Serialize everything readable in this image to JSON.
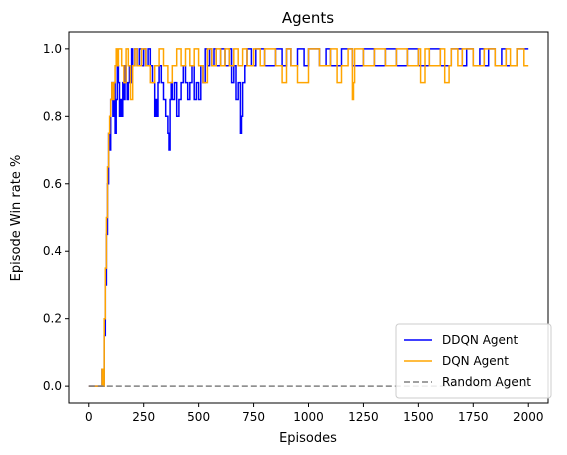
{
  "chart_data": {
    "type": "line",
    "title": "Agents",
    "xlabel": "Episodes",
    "ylabel": "Episode Win rate %",
    "xlim": [
      -90,
      2090
    ],
    "ylim": [
      -0.05,
      1.05
    ],
    "xticks": [
      0,
      250,
      500,
      750,
      1000,
      1250,
      1500,
      1750,
      2000
    ],
    "yticks": [
      0.0,
      0.2,
      0.4,
      0.6,
      0.8,
      1.0
    ],
    "xtick_labels": [
      "0",
      "250",
      "500",
      "750",
      "1000",
      "1250",
      "1500",
      "1750",
      "2000"
    ],
    "ytick_labels": [
      "0.0",
      "0.2",
      "0.4",
      "0.6",
      "0.8",
      "1.0"
    ],
    "grid": false,
    "legend_position": "lower-right",
    "series": [
      {
        "name": "DDQN Agent",
        "color": "#0000ff",
        "dash": "solid",
        "x": [
          0,
          50,
          60,
          65,
          70,
          75,
          80,
          85,
          90,
          95,
          100,
          105,
          110,
          115,
          120,
          125,
          130,
          135,
          140,
          145,
          150,
          155,
          160,
          165,
          170,
          175,
          180,
          185,
          190,
          195,
          200,
          210,
          220,
          230,
          240,
          250,
          260,
          270,
          280,
          290,
          300,
          305,
          310,
          315,
          320,
          330,
          340,
          350,
          360,
          365,
          370,
          375,
          380,
          390,
          400,
          410,
          420,
          430,
          440,
          450,
          460,
          470,
          480,
          490,
          500,
          510,
          520,
          530,
          540,
          550,
          560,
          570,
          580,
          600,
          620,
          640,
          650,
          660,
          670,
          680,
          690,
          695,
          700,
          710,
          720,
          740,
          760,
          800,
          850,
          880,
          900,
          920,
          950,
          980,
          1000,
          1050,
          1080,
          1100,
          1150,
          1200,
          1250,
          1300,
          1350,
          1400,
          1450,
          1500,
          1550,
          1600,
          1650,
          1700,
          1720,
          1750,
          1780,
          1800,
          1820,
          1850,
          1880,
          1900,
          1950,
          2000
        ],
        "y": [
          0.0,
          0.0,
          0.05,
          0.0,
          0.15,
          0.3,
          0.45,
          0.6,
          0.75,
          0.7,
          0.85,
          0.9,
          0.8,
          0.9,
          0.75,
          0.85,
          0.95,
          0.9,
          0.8,
          0.85,
          0.8,
          0.9,
          0.85,
          0.95,
          0.9,
          0.85,
          0.9,
          0.95,
          0.9,
          1.0,
          0.95,
          1.0,
          0.95,
          1.0,
          0.95,
          1.0,
          0.95,
          1.0,
          0.95,
          0.9,
          0.8,
          0.85,
          0.8,
          0.9,
          0.95,
          0.9,
          0.85,
          0.8,
          0.75,
          0.7,
          0.85,
          0.9,
          0.85,
          0.9,
          0.8,
          0.85,
          0.9,
          0.95,
          0.9,
          0.85,
          0.9,
          0.95,
          0.85,
          0.9,
          0.85,
          0.95,
          0.9,
          1.0,
          0.95,
          1.0,
          0.95,
          1.0,
          0.95,
          1.0,
          0.95,
          1.0,
          0.9,
          0.95,
          0.85,
          0.9,
          0.75,
          0.8,
          0.9,
          0.95,
          1.0,
          0.95,
          1.0,
          0.95,
          1.0,
          0.95,
          1.0,
          0.95,
          1.0,
          0.95,
          1.0,
          0.95,
          1.0,
          0.95,
          1.0,
          0.95,
          1.0,
          0.95,
          1.0,
          0.95,
          1.0,
          0.95,
          1.0,
          0.95,
          1.0,
          0.95,
          1.0,
          0.95,
          1.0,
          0.95,
          1.0,
          0.95,
          1.0,
          0.95,
          1.0,
          1.0
        ]
      },
      {
        "name": "DQN Agent",
        "color": "#ffa500",
        "dash": "solid",
        "x": [
          0,
          50,
          60,
          65,
          70,
          75,
          80,
          85,
          90,
          95,
          100,
          105,
          110,
          115,
          120,
          125,
          130,
          135,
          140,
          150,
          160,
          170,
          180,
          190,
          200,
          210,
          220,
          240,
          260,
          280,
          300,
          320,
          340,
          360,
          380,
          400,
          420,
          440,
          460,
          480,
          500,
          520,
          540,
          560,
          580,
          600,
          620,
          640,
          660,
          680,
          700,
          720,
          750,
          780,
          800,
          850,
          880,
          900,
          920,
          950,
          1000,
          1050,
          1100,
          1130,
          1150,
          1180,
          1200,
          1205,
          1210,
          1250,
          1300,
          1350,
          1400,
          1450,
          1500,
          1510,
          1530,
          1550,
          1600,
          1620,
          1640,
          1650,
          1680,
          1700,
          1750,
          1800,
          1850,
          1900,
          1920,
          1950,
          1980,
          2000
        ],
        "y": [
          0.0,
          0.0,
          0.05,
          0.0,
          0.2,
          0.35,
          0.5,
          0.65,
          0.75,
          0.8,
          0.85,
          0.9,
          0.85,
          0.9,
          0.95,
          1.0,
          0.95,
          1.0,
          1.0,
          0.95,
          0.9,
          1.0,
          0.95,
          0.85,
          0.95,
          1.0,
          0.95,
          1.0,
          0.95,
          0.9,
          0.95,
          1.0,
          0.95,
          0.9,
          0.95,
          1.0,
          0.95,
          1.0,
          0.95,
          1.0,
          0.95,
          0.9,
          1.0,
          0.95,
          1.0,
          0.95,
          1.0,
          0.95,
          1.0,
          0.95,
          1.0,
          0.95,
          1.0,
          0.95,
          1.0,
          0.95,
          0.9,
          1.0,
          0.95,
          0.9,
          1.0,
          0.95,
          1.0,
          0.9,
          0.95,
          1.0,
          0.85,
          0.9,
          1.0,
          0.95,
          1.0,
          0.95,
          1.0,
          0.95,
          1.0,
          0.9,
          1.0,
          0.95,
          1.0,
          0.9,
          0.95,
          1.0,
          0.95,
          1.0,
          0.95,
          1.0,
          0.95,
          1.0,
          0.95,
          1.0,
          0.95,
          0.95
        ]
      },
      {
        "name": "Random Agent",
        "color": "#808080",
        "dash": "dashed",
        "x": [
          0,
          2000
        ],
        "y": [
          0.0,
          0.0
        ]
      }
    ]
  }
}
